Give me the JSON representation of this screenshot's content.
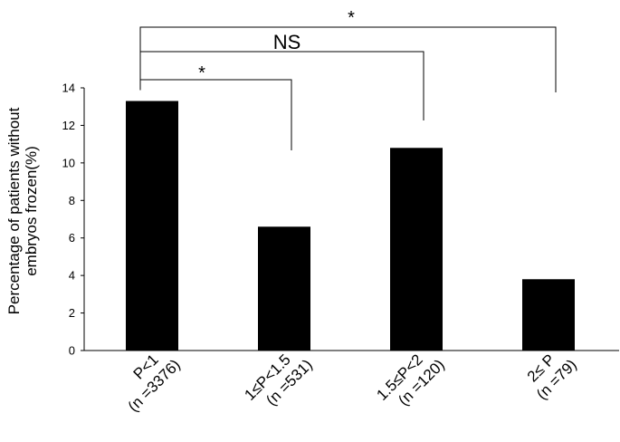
{
  "chart_data": {
    "type": "bar",
    "ylabel_line1": "Percentage of patients without",
    "ylabel_line2": "embryos frozen(%)",
    "ylim": [
      0,
      14
    ],
    "yticks": [
      0,
      2,
      4,
      6,
      8,
      10,
      12,
      14
    ],
    "grid": false,
    "categories": [
      {
        "line1": "P<1",
        "line2": "(n =3376)"
      },
      {
        "line1": "1≤P<1.5",
        "line2": "(n =531)"
      },
      {
        "line1": "1.5≤P<2",
        "line2": "(n =120)"
      },
      {
        "line1": "2≤ P",
        "line2": "(n =79)"
      }
    ],
    "values": [
      13.3,
      6.6,
      10.8,
      3.8
    ],
    "bar_color": "#000000",
    "significance": [
      {
        "from": 0,
        "to": 1,
        "label": "*"
      },
      {
        "from": 0,
        "to": 2,
        "label": "NS"
      },
      {
        "from": 0,
        "to": 3,
        "label": "*"
      }
    ]
  }
}
